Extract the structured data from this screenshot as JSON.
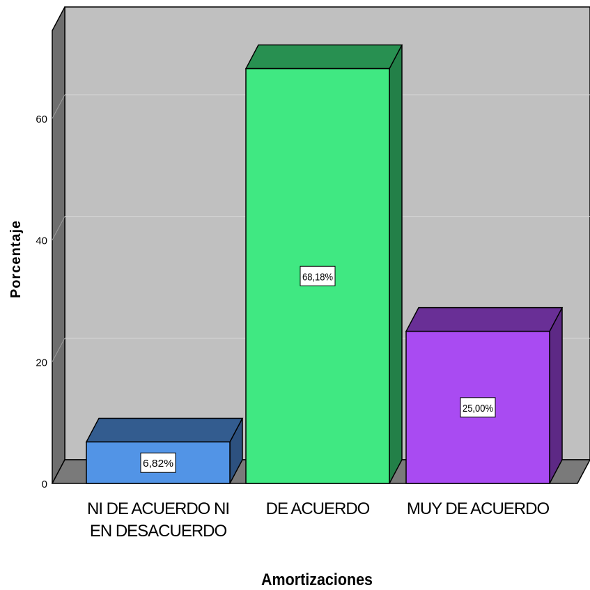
{
  "chart_data": {
    "type": "bar",
    "categories": [
      "NI DE ACUERDO NI EN DESACUERDO",
      "DE ACUERDO",
      "MUY DE ACUERDO"
    ],
    "category_lines": [
      [
        "NI DE ACUERDO NI",
        "EN DESACUERDO"
      ],
      [
        "DE ACUERDO"
      ],
      [
        "MUY DE ACUERDO"
      ]
    ],
    "values": [
      6.82,
      68.18,
      25.0
    ],
    "data_labels": [
      "6,82%",
      "68,18%",
      "25,00%"
    ],
    "colors": [
      "#5294E6",
      "#40E882",
      "#A94BF2"
    ],
    "ylim": [
      0,
      80
    ],
    "yticks": [
      0,
      20,
      40,
      60
    ],
    "ytick_labels": [
      "0",
      "20",
      "40",
      "60"
    ],
    "xlabel": "Amortizaciones",
    "ylabel": "Porcentaje",
    "grid": true,
    "three_d": true,
    "background_color": "#C0C0C0"
  }
}
